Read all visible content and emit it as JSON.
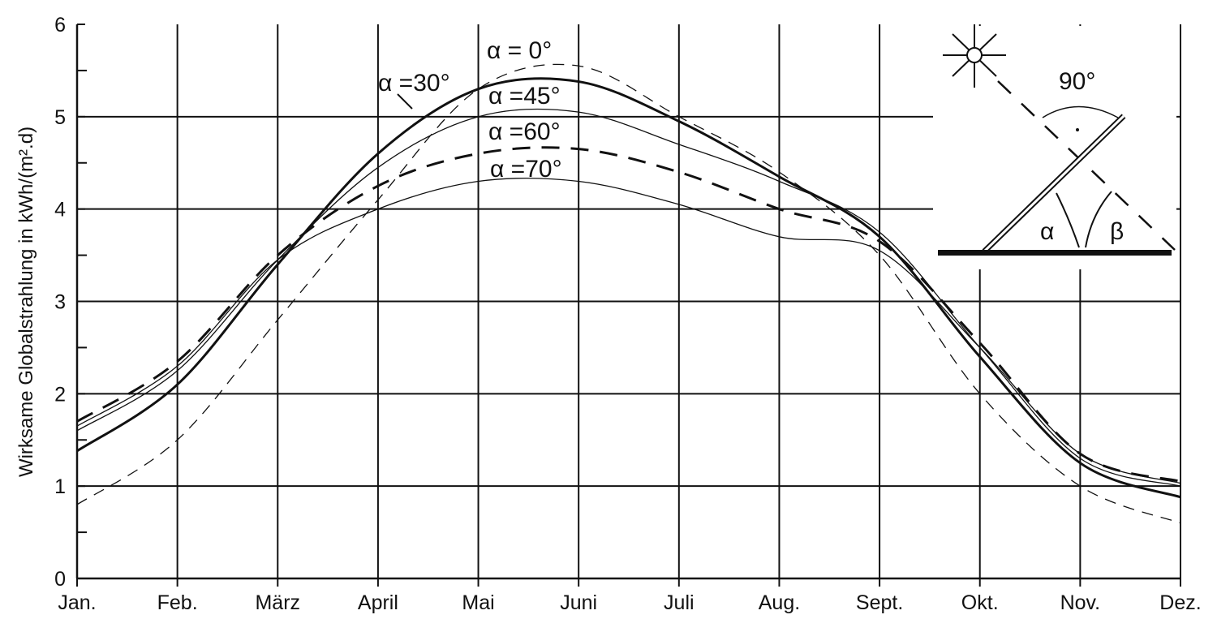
{
  "chart_data": {
    "type": "line",
    "title": "",
    "xlabel": "",
    "ylabel": "Wirksame Globalstrahlung in kWh/(m².d)",
    "categories": [
      "Jan.",
      "Feb.",
      "März",
      "April",
      "Mai",
      "Juni",
      "Juli",
      "Aug.",
      "Sept.",
      "Okt.",
      "Nov.",
      "Dez."
    ],
    "ylim": [
      0,
      6
    ],
    "yticks": [
      "0",
      "1",
      "2",
      "3",
      "4",
      "5",
      "6"
    ],
    "grid": true,
    "series": [
      {
        "name": "α = 0°",
        "style": "thin-dashed",
        "values": [
          0.8,
          1.5,
          2.8,
          4.1,
          5.3,
          5.55,
          5.0,
          4.4,
          3.5,
          2.0,
          1.0,
          0.6
        ]
      },
      {
        "name": "α =30°",
        "style": "thick-solid",
        "values": [
          1.38,
          2.1,
          3.4,
          4.6,
          5.3,
          5.38,
          4.95,
          4.35,
          3.7,
          2.4,
          1.25,
          0.88
        ]
      },
      {
        "name": "α =45°",
        "style": "thin-solid",
        "values": [
          1.6,
          2.25,
          3.45,
          4.45,
          5.0,
          5.05,
          4.7,
          4.3,
          3.75,
          2.5,
          1.3,
          1.0
        ]
      },
      {
        "name": "α =60°",
        "style": "thick-dashed",
        "values": [
          1.7,
          2.35,
          3.5,
          4.25,
          4.6,
          4.65,
          4.4,
          4.0,
          3.65,
          2.55,
          1.35,
          1.05
        ]
      },
      {
        "name": "α =70°",
        "style": "thin-solid",
        "values": [
          1.65,
          2.3,
          3.45,
          4.0,
          4.3,
          4.3,
          4.05,
          3.7,
          3.55,
          2.5,
          1.35,
          1.03
        ]
      }
    ],
    "inset": {
      "angle_label": "90°",
      "alpha_label": "α",
      "beta_label": "β"
    }
  }
}
